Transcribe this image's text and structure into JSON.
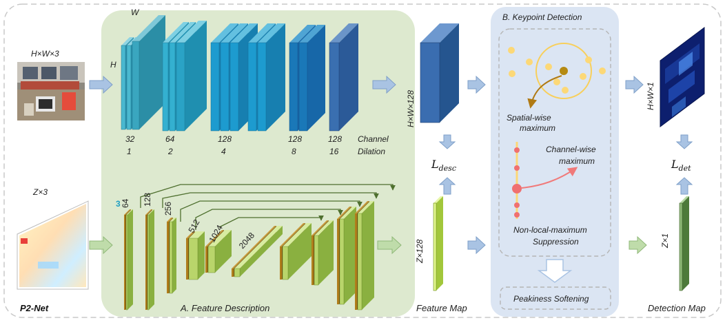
{
  "figure": {
    "name": "P2-Net",
    "input_image_label": "H×W×3",
    "input_points_label": "Z×3",
    "image_dims": {
      "H": "H",
      "W": "W"
    },
    "image_encoder": {
      "channels": [
        "32",
        "64",
        "128",
        "128",
        "128"
      ],
      "dilations": [
        "1",
        "2",
        "4",
        "8",
        "16"
      ],
      "legend_line1": "Channel",
      "legend_line2": "Dilation"
    },
    "point_encoder": {
      "input_channels": "3",
      "channels": [
        "64",
        "128",
        "256",
        "512",
        "1024",
        "2048"
      ]
    },
    "feature_description": "A. Feature Description",
    "feature_map_image_label": "H×W×128",
    "feature_map_points_label": "Z×128",
    "loss_desc": {
      "base": "L",
      "sub": "desc"
    },
    "feature_map_caption": "Feature Map",
    "keypoint_detection": {
      "title": "B. Keypoint Detection",
      "spatial_line1": "Spatial-wise",
      "spatial_line2": "maximum",
      "channel_line1": "Channel-wise",
      "channel_line2": "maximum",
      "nlm_line1": "Non-local-maximum",
      "nlm_line2": "Suppression",
      "peakiness": "Peakiness Softening"
    },
    "detection_image_label": "H×W×1",
    "detection_points_label": "Z×1",
    "loss_det": {
      "base": "L",
      "sub": "det"
    },
    "detection_map_caption": "Detection Map"
  },
  "colors": {
    "green_panel": "#dde9cf",
    "blue_panel": "#dbe5f3",
    "arrow": "#a9c3e3",
    "conv_teal": "#3fb3c9",
    "conv_dark": "#2d62a0",
    "pn_green": "#b9d56b",
    "pn_brown": "#9a6a12",
    "peak_yellow": "#fcd877",
    "peak_red": "#f07070"
  }
}
